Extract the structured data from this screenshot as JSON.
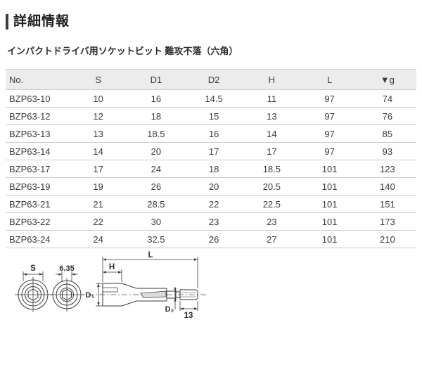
{
  "page": {
    "title": "詳細情報",
    "subtitle": "インパクトドライバ用ソケットビット 難攻不落（六角）"
  },
  "table": {
    "columns": [
      "No.",
      "S",
      "D1",
      "D2",
      "H",
      "L",
      "▼g"
    ],
    "rows": [
      [
        "BZP63-10",
        "10",
        "16",
        "14.5",
        "11",
        "97",
        "74"
      ],
      [
        "BZP63-12",
        "12",
        "18",
        "15",
        "13",
        "97",
        "76"
      ],
      [
        "BZP63-13",
        "13",
        "18.5",
        "16",
        "14",
        "97",
        "85"
      ],
      [
        "BZP63-14",
        "14",
        "20",
        "17",
        "17",
        "97",
        "93"
      ],
      [
        "BZP63-17",
        "17",
        "24",
        "18",
        "18.5",
        "101",
        "123"
      ],
      [
        "BZP63-19",
        "19",
        "26",
        "20",
        "20.5",
        "101",
        "140"
      ],
      [
        "BZP63-21",
        "21",
        "28.5",
        "22",
        "22.5",
        "101",
        "151"
      ],
      [
        "BZP63-22",
        "22",
        "30",
        "23",
        "23",
        "101",
        "173"
      ],
      [
        "BZP63-24",
        "24",
        "32.5",
        "26",
        "27",
        "101",
        "210"
      ]
    ]
  },
  "diagram": {
    "labels": {
      "s": "S",
      "hex_drive": "6.35",
      "length": "L",
      "socket_depth": "H",
      "d1": "D₁",
      "d2": "D₂",
      "shank_length": "13"
    }
  },
  "colors": {
    "accent_bar": "#3d3d3d",
    "header_bg": "#ececec",
    "row_border": "#cccccc",
    "text": "#333333",
    "diagram_line": "#3a3a3a"
  }
}
